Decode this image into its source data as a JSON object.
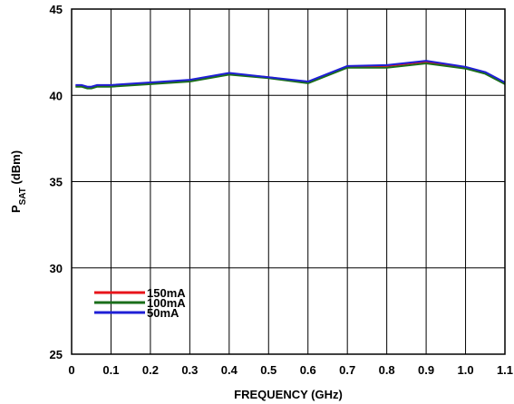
{
  "chart_data": {
    "type": "line",
    "xlabel": "FREQUENCY (GHz)",
    "ylabel_main": "P",
    "ylabel_sub": "SAT",
    "ylabel_unit": " (dBm)",
    "xlim": [
      0,
      1.1
    ],
    "ylim": [
      25,
      45
    ],
    "xticks": [
      0,
      0.1,
      0.2,
      0.3,
      0.4,
      0.5,
      0.6,
      0.7,
      0.8,
      0.9,
      1.0,
      1.1
    ],
    "xtick_labels": [
      "0",
      "0.1",
      "0.2",
      "0.3",
      "0.4",
      "0.5",
      "0.6",
      "0.7",
      "0.8",
      "0.9",
      "1.0",
      "1.1"
    ],
    "yticks": [
      25,
      30,
      35,
      40,
      45
    ],
    "ytick_labels": [
      "25",
      "30",
      "35",
      "40",
      "45"
    ],
    "grid": true,
    "legend_position": "bottom-left",
    "series": [
      {
        "name": "150mA",
        "color": "#e8141b",
        "points": [
          [
            0.01,
            40.55
          ],
          [
            0.025,
            40.55
          ],
          [
            0.04,
            40.45
          ],
          [
            0.05,
            40.45
          ],
          [
            0.065,
            40.55
          ],
          [
            0.08,
            40.55
          ],
          [
            0.1,
            40.55
          ],
          [
            0.2,
            40.7
          ],
          [
            0.3,
            40.85
          ],
          [
            0.4,
            41.25
          ],
          [
            0.5,
            41.05
          ],
          [
            0.6,
            40.75
          ],
          [
            0.7,
            41.65
          ],
          [
            0.8,
            41.7
          ],
          [
            0.9,
            41.95
          ],
          [
            1.0,
            41.6
          ],
          [
            1.05,
            41.3
          ],
          [
            1.1,
            40.7
          ]
        ]
      },
      {
        "name": "100mA",
        "color": "#1a6e1a",
        "points": [
          [
            0.01,
            40.5
          ],
          [
            0.025,
            40.5
          ],
          [
            0.04,
            40.4
          ],
          [
            0.05,
            40.4
          ],
          [
            0.065,
            40.5
          ],
          [
            0.08,
            40.5
          ],
          [
            0.1,
            40.5
          ],
          [
            0.2,
            40.65
          ],
          [
            0.3,
            40.8
          ],
          [
            0.4,
            41.2
          ],
          [
            0.5,
            41.0
          ],
          [
            0.6,
            40.7
          ],
          [
            0.7,
            41.6
          ],
          [
            0.8,
            41.6
          ],
          [
            0.9,
            41.85
          ],
          [
            1.0,
            41.55
          ],
          [
            1.05,
            41.25
          ],
          [
            1.1,
            40.65
          ]
        ]
      },
      {
        "name": "50mA",
        "color": "#1f1fd6",
        "points": [
          [
            0.01,
            40.6
          ],
          [
            0.025,
            40.6
          ],
          [
            0.04,
            40.5
          ],
          [
            0.05,
            40.5
          ],
          [
            0.065,
            40.6
          ],
          [
            0.08,
            40.6
          ],
          [
            0.1,
            40.6
          ],
          [
            0.2,
            40.75
          ],
          [
            0.3,
            40.9
          ],
          [
            0.4,
            41.3
          ],
          [
            0.5,
            41.05
          ],
          [
            0.6,
            40.8
          ],
          [
            0.7,
            41.7
          ],
          [
            0.8,
            41.75
          ],
          [
            0.9,
            42.0
          ],
          [
            1.0,
            41.65
          ],
          [
            1.05,
            41.35
          ],
          [
            1.1,
            40.75
          ]
        ]
      }
    ]
  }
}
